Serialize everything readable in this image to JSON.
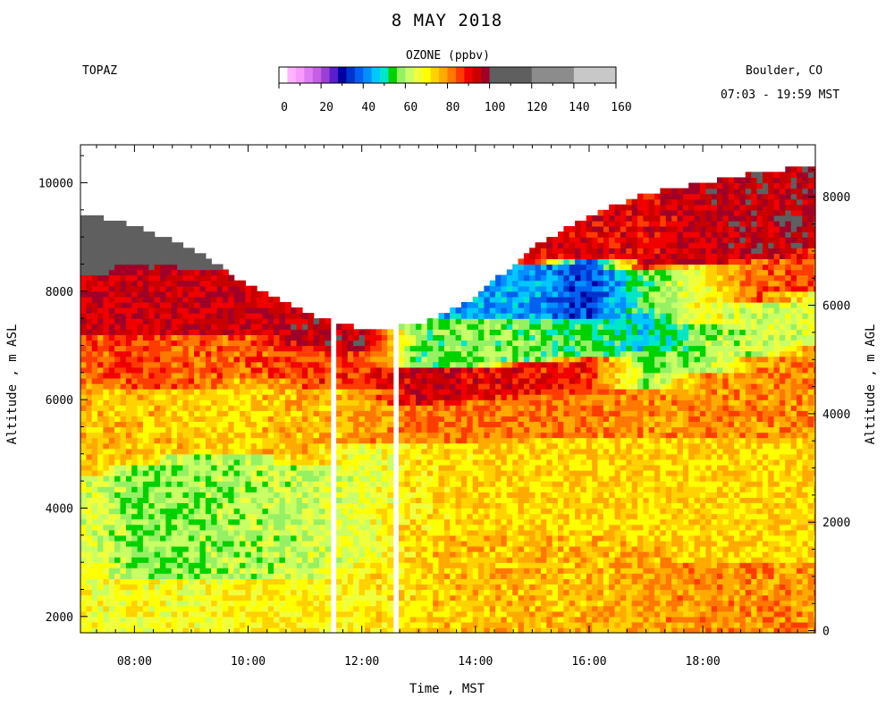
{
  "header": {
    "title": "8 MAY 2018",
    "station": "TOPAZ",
    "location": "Boulder, CO",
    "time_range": "07:03 - 19:59 MST"
  },
  "colorbar": {
    "title": "OZONE (ppbv)",
    "ticks": [
      0,
      20,
      40,
      60,
      80,
      100,
      120,
      140,
      160
    ],
    "range": [
      0,
      160
    ],
    "segments": [
      {
        "from": 0,
        "to": 4,
        "color": "#ffffff"
      },
      {
        "from": 4,
        "to": 8,
        "color": "#ffb4ff"
      },
      {
        "from": 8,
        "to": 12,
        "color": "#f79bff"
      },
      {
        "from": 12,
        "to": 16,
        "color": "#e07df4"
      },
      {
        "from": 16,
        "to": 20,
        "color": "#c65fe6"
      },
      {
        "from": 20,
        "to": 24,
        "color": "#9b3fd8"
      },
      {
        "from": 24,
        "to": 28,
        "color": "#5a1ed0"
      },
      {
        "from": 28,
        "to": 32,
        "color": "#0000a0"
      },
      {
        "from": 32,
        "to": 36,
        "color": "#0033cc"
      },
      {
        "from": 36,
        "to": 40,
        "color": "#0060f0"
      },
      {
        "from": 40,
        "to": 44,
        "color": "#0090ff"
      },
      {
        "from": 44,
        "to": 48,
        "color": "#00c8ff"
      },
      {
        "from": 48,
        "to": 52,
        "color": "#00e6c8"
      },
      {
        "from": 52,
        "to": 56,
        "color": "#00d200"
      },
      {
        "from": 56,
        "to": 60,
        "color": "#96f064"
      },
      {
        "from": 60,
        "to": 64,
        "color": "#c8ff64"
      },
      {
        "from": 64,
        "to": 68,
        "color": "#f0ff3c"
      },
      {
        "from": 68,
        "to": 72,
        "color": "#ffff00"
      },
      {
        "from": 72,
        "to": 76,
        "color": "#ffd200"
      },
      {
        "from": 76,
        "to": 80,
        "color": "#ffaa00"
      },
      {
        "from": 80,
        "to": 84,
        "color": "#ff7800"
      },
      {
        "from": 84,
        "to": 88,
        "color": "#ff3c00"
      },
      {
        "from": 88,
        "to": 92,
        "color": "#f00000"
      },
      {
        "from": 92,
        "to": 96,
        "color": "#c80000"
      },
      {
        "from": 96,
        "to": 100,
        "color": "#a00028"
      },
      {
        "from": 100,
        "to": 120,
        "color": "#5f5f5f"
      },
      {
        "from": 120,
        "to": 140,
        "color": "#8c8c8c"
      },
      {
        "from": 140,
        "to": 160,
        "color": "#c8c8c8"
      }
    ]
  },
  "chart_data": {
    "type": "heatmap",
    "title": "8 MAY 2018",
    "variable": "OZONE (ppbv)",
    "xlabel": "Time , MST",
    "ylabel": "Altitude , m ASL",
    "ylabel_right": "Altitude , m AGL",
    "x_ticks": [
      "08:00",
      "10:00",
      "12:00",
      "14:00",
      "16:00",
      "18:00"
    ],
    "x_range_hours": [
      7.05,
      19.98
    ],
    "y_ticks": [
      2000,
      4000,
      6000,
      8000,
      10000
    ],
    "y_range": [
      1700,
      10700
    ],
    "y_right_ticks": [
      0,
      2000,
      4000,
      6000,
      8000
    ],
    "surface_altitude_m": 1740,
    "data_gaps_hours": [
      [
        11.43,
        11.58
      ],
      [
        12.53,
        12.68
      ]
    ],
    "profiles": [
      {
        "time": 7.25,
        "top": 9400,
        "bands": [
          [
            1700,
            3000,
            68
          ],
          [
            3000,
            4600,
            64
          ],
          [
            4600,
            6300,
            76
          ],
          [
            6300,
            7200,
            84
          ],
          [
            7200,
            8300,
            94
          ],
          [
            8300,
            9400,
            112
          ]
        ]
      },
      {
        "time": 8.0,
        "top": 9200,
        "bands": [
          [
            1700,
            2700,
            68
          ],
          [
            2700,
            4800,
            58
          ],
          [
            4800,
            6200,
            76
          ],
          [
            6200,
            7200,
            86
          ],
          [
            7200,
            8500,
            94
          ],
          [
            8500,
            9200,
            110
          ]
        ]
      },
      {
        "time": 9.0,
        "top": 8800,
        "bands": [
          [
            1700,
            2700,
            68
          ],
          [
            2700,
            5000,
            58
          ],
          [
            5000,
            6200,
            74
          ],
          [
            6200,
            7200,
            84
          ],
          [
            7200,
            8400,
            94
          ],
          [
            8400,
            8800,
            108
          ]
        ]
      },
      {
        "time": 10.0,
        "top": 8100,
        "bands": [
          [
            1700,
            2700,
            70
          ],
          [
            2700,
            5000,
            60
          ],
          [
            5000,
            6400,
            74
          ],
          [
            6400,
            7200,
            84
          ],
          [
            7200,
            8100,
            94
          ]
        ]
      },
      {
        "time": 11.0,
        "top": 7600,
        "bands": [
          [
            1700,
            2700,
            70
          ],
          [
            2700,
            4800,
            62
          ],
          [
            4800,
            6200,
            76
          ],
          [
            6200,
            7000,
            86
          ],
          [
            7000,
            7600,
            95
          ]
        ]
      },
      {
        "time": 12.0,
        "top": 7300,
        "bands": [
          [
            1700,
            3000,
            70
          ],
          [
            3000,
            5200,
            66
          ],
          [
            5200,
            6200,
            78
          ],
          [
            6200,
            6900,
            88
          ],
          [
            6900,
            7300,
            96
          ]
        ]
      },
      {
        "time": 13.0,
        "top": 7400,
        "bands": [
          [
            1700,
            3500,
            74
          ],
          [
            3500,
            5200,
            72
          ],
          [
            5200,
            5900,
            82
          ],
          [
            5900,
            6600,
            94
          ],
          [
            6600,
            7400,
            56
          ]
        ]
      },
      {
        "time": 14.0,
        "top": 7900,
        "bands": [
          [
            1700,
            3500,
            76
          ],
          [
            3500,
            5200,
            74
          ],
          [
            5200,
            6000,
            82
          ],
          [
            6000,
            6600,
            92
          ],
          [
            6600,
            7500,
            58
          ],
          [
            7500,
            7900,
            44
          ]
        ]
      },
      {
        "time": 15.0,
        "top": 8800,
        "bands": [
          [
            1700,
            3500,
            76
          ],
          [
            3500,
            5300,
            74
          ],
          [
            5300,
            6100,
            82
          ],
          [
            6100,
            6700,
            90
          ],
          [
            6700,
            7500,
            56
          ],
          [
            7500,
            8500,
            44
          ],
          [
            8500,
            8800,
            90
          ]
        ]
      },
      {
        "time": 16.0,
        "top": 9400,
        "bands": [
          [
            1700,
            3500,
            76
          ],
          [
            3500,
            5300,
            74
          ],
          [
            5300,
            6200,
            82
          ],
          [
            6200,
            6800,
            88
          ],
          [
            6800,
            7500,
            54
          ],
          [
            7500,
            8600,
            34
          ],
          [
            8600,
            9400,
            92
          ]
        ]
      },
      {
        "time": 17.0,
        "top": 9800,
        "bands": [
          [
            1700,
            3300,
            78
          ],
          [
            3300,
            5300,
            74
          ],
          [
            5300,
            6200,
            80
          ],
          [
            6200,
            6900,
            58
          ],
          [
            6900,
            7600,
            48
          ],
          [
            7600,
            8400,
            56
          ],
          [
            8400,
            9800,
            92
          ]
        ]
      },
      {
        "time": 18.0,
        "top": 10000,
        "bands": [
          [
            1700,
            3000,
            80
          ],
          [
            3000,
            5300,
            74
          ],
          [
            5300,
            6500,
            80
          ],
          [
            6500,
            7400,
            58
          ],
          [
            7400,
            8500,
            68
          ],
          [
            8500,
            10000,
            94
          ]
        ]
      },
      {
        "time": 19.0,
        "top": 10200,
        "bands": [
          [
            1700,
            3000,
            80
          ],
          [
            3000,
            5300,
            74
          ],
          [
            5300,
            6800,
            80
          ],
          [
            6800,
            7800,
            62
          ],
          [
            7800,
            8600,
            84
          ],
          [
            8600,
            10200,
            96
          ]
        ]
      },
      {
        "time": 19.98,
        "top": 10300,
        "bands": [
          [
            1700,
            3000,
            80
          ],
          [
            3000,
            5300,
            74
          ],
          [
            5300,
            7000,
            80
          ],
          [
            7000,
            8000,
            66
          ],
          [
            8000,
            8800,
            86
          ],
          [
            8800,
            10300,
            96
          ]
        ]
      }
    ]
  }
}
